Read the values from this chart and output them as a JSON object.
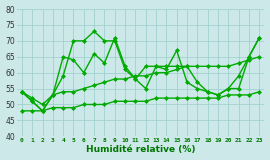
{
  "title": "",
  "xlabel": "Humidité relative (%)",
  "ylabel": "",
  "xlim": [
    -0.5,
    23.5
  ],
  "ylim": [
    40,
    80
  ],
  "yticks": [
    40,
    45,
    50,
    55,
    60,
    65,
    70,
    75,
    80
  ],
  "xticks": [
    0,
    1,
    2,
    3,
    4,
    5,
    6,
    7,
    8,
    9,
    10,
    11,
    12,
    13,
    14,
    15,
    16,
    17,
    18,
    19,
    20,
    21,
    22,
    23
  ],
  "bg_color": "#cce8e8",
  "line_color": "#00aa00",
  "grid_color": "#99cccc",
  "series": [
    [
      54,
      51,
      48,
      53,
      59,
      70,
      70,
      73,
      70,
      70,
      61,
      58,
      62,
      62,
      61,
      67,
      57,
      55,
      54,
      53,
      55,
      55,
      65,
      71
    ],
    [
      54,
      51,
      48,
      53,
      65,
      64,
      60,
      66,
      63,
      71,
      62,
      58,
      55,
      62,
      62,
      62,
      62,
      57,
      54,
      53,
      55,
      59,
      65,
      71
    ],
    [
      54,
      52,
      50,
      53,
      54,
      54,
      55,
      56,
      57,
      58,
      58,
      59,
      59,
      60,
      60,
      61,
      62,
      62,
      62,
      62,
      62,
      63,
      64,
      65
    ],
    [
      48,
      48,
      48,
      49,
      49,
      49,
      50,
      50,
      50,
      51,
      51,
      51,
      51,
      52,
      52,
      52,
      52,
      52,
      52,
      52,
      53,
      53,
      53,
      54
    ]
  ]
}
